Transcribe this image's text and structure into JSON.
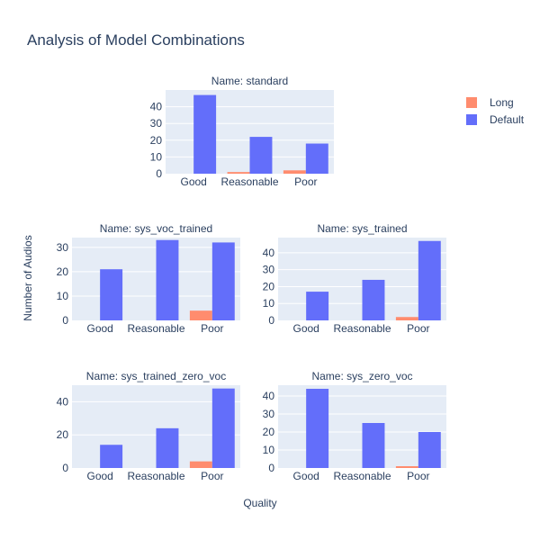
{
  "title": "Analysis of Model Combinations",
  "x_axis_title": "Quality",
  "y_axis_title": "Number of Audios",
  "legend": [
    {
      "name": "Long",
      "color": "#ff8c6e"
    },
    {
      "name": "Default",
      "color": "#636efa"
    }
  ],
  "chart_data": [
    {
      "type": "bar",
      "title": "Name: standard",
      "categories": [
        "Good",
        "Reasonable",
        "Poor"
      ],
      "series": [
        {
          "name": "Long",
          "color": "#ff8c6e",
          "values": [
            0,
            1,
            2
          ]
        },
        {
          "name": "Default",
          "color": "#636efa",
          "values": [
            47,
            22,
            18
          ]
        }
      ],
      "ylim": [
        0,
        50
      ],
      "yticks": [
        0,
        10,
        20,
        30,
        40
      ]
    },
    {
      "type": "bar",
      "title": "Name: sys_voc_trained",
      "categories": [
        "Good",
        "Reasonable",
        "Poor"
      ],
      "series": [
        {
          "name": "Long",
          "color": "#ff8c6e",
          "values": [
            0,
            0,
            4
          ]
        },
        {
          "name": "Default",
          "color": "#636efa",
          "values": [
            21,
            33,
            32
          ]
        }
      ],
      "ylim": [
        0,
        34
      ],
      "yticks": [
        0,
        10,
        20,
        30
      ]
    },
    {
      "type": "bar",
      "title": "Name: sys_trained",
      "categories": [
        "Good",
        "Reasonable",
        "Poor"
      ],
      "series": [
        {
          "name": "Long",
          "color": "#ff8c6e",
          "values": [
            0,
            0,
            2
          ]
        },
        {
          "name": "Default",
          "color": "#636efa",
          "values": [
            17,
            24,
            47
          ]
        }
      ],
      "ylim": [
        0,
        49
      ],
      "yticks": [
        0,
        10,
        20,
        30,
        40
      ]
    },
    {
      "type": "bar",
      "title": "Name: sys_trained_zero_voc",
      "categories": [
        "Good",
        "Reasonable",
        "Poor"
      ],
      "series": [
        {
          "name": "Long",
          "color": "#ff8c6e",
          "values": [
            0,
            0,
            4
          ]
        },
        {
          "name": "Default",
          "color": "#636efa",
          "values": [
            14,
            24,
            48
          ]
        }
      ],
      "ylim": [
        0,
        50
      ],
      "yticks": [
        0,
        20,
        40
      ]
    },
    {
      "type": "bar",
      "title": "Name: sys_zero_voc",
      "categories": [
        "Good",
        "Reasonable",
        "Poor"
      ],
      "series": [
        {
          "name": "Long",
          "color": "#ff8c6e",
          "values": [
            0,
            0,
            1
          ]
        },
        {
          "name": "Default",
          "color": "#636efa",
          "values": [
            44,
            25,
            20
          ]
        }
      ],
      "ylim": [
        0,
        46
      ],
      "yticks": [
        0,
        10,
        20,
        30,
        40
      ]
    }
  ]
}
